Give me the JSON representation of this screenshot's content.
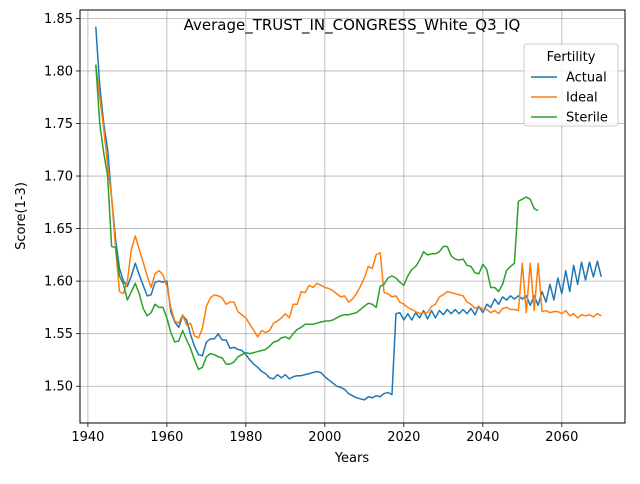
{
  "chart_data": {
    "type": "line",
    "title": "Average_TRUST_IN_CONGRESS_White_Q3_IQ",
    "xlabel": "Years",
    "ylabel": "Score(1-3)",
    "xlim": [
      1938,
      2076
    ],
    "ylim": [
      1.465,
      1.858
    ],
    "xticks": [
      1940,
      1960,
      1980,
      2000,
      2020,
      2040,
      2060
    ],
    "yticks": [
      1.5,
      1.55,
      1.6,
      1.65,
      1.7,
      1.75,
      1.8,
      1.85
    ],
    "ytick_labels": [
      "1.50",
      "1.55",
      "1.60",
      "1.65",
      "1.70",
      "1.75",
      "1.80",
      "1.85"
    ],
    "grid": true,
    "legend": {
      "title": "Fertility",
      "placement": "upper right"
    },
    "series": [
      {
        "name": "Actual",
        "color": "#1f77b4",
        "x": [
          1942,
          1943,
          1944,
          1945,
          1946,
          1947,
          1948,
          1949,
          1950,
          1951,
          1952,
          1953,
          1954,
          1955,
          1956,
          1957,
          1958,
          1959,
          1960,
          1961,
          1962,
          1963,
          1964,
          1965,
          1966,
          1967,
          1968,
          1969,
          1970,
          1971,
          1972,
          1973,
          1974,
          1975,
          1976,
          1977,
          1978,
          1979,
          1980,
          1981,
          1982,
          1983,
          1984,
          1985,
          1986,
          1987,
          1988,
          1989,
          1990,
          1991,
          1992,
          1993,
          1994,
          1995,
          1996,
          1997,
          1998,
          1999,
          2000,
          2001,
          2002,
          2003,
          2004,
          2005,
          2006,
          2007,
          2008,
          2009,
          2010,
          2011,
          2012,
          2013,
          2014,
          2015,
          2016,
          2017,
          2018,
          2019,
          2020,
          2021,
          2022,
          2023,
          2024,
          2025,
          2026,
          2027,
          2028,
          2029,
          2030,
          2031,
          2032,
          2033,
          2034,
          2035,
          2036,
          2037,
          2038,
          2039,
          2040,
          2041,
          2042,
          2043,
          2044,
          2045,
          2046,
          2047,
          2048,
          2049,
          2050,
          2051,
          2052,
          2053,
          2054,
          2055,
          2056,
          2057,
          2058,
          2059,
          2060,
          2061,
          2062,
          2063,
          2064,
          2065,
          2066,
          2067,
          2068,
          2069,
          2070
        ],
        "y": [
          1.842,
          1.786,
          1.75,
          1.725,
          1.68,
          1.64,
          1.612,
          1.6,
          1.595,
          1.605,
          1.617,
          1.606,
          1.596,
          1.586,
          1.587,
          1.599,
          1.6,
          1.599,
          1.6,
          1.571,
          1.561,
          1.556,
          1.567,
          1.563,
          1.549,
          1.538,
          1.53,
          1.529,
          1.542,
          1.545,
          1.545,
          1.55,
          1.544,
          1.544,
          1.536,
          1.537,
          1.535,
          1.534,
          1.53,
          1.525,
          1.521,
          1.518,
          1.514,
          1.512,
          1.508,
          1.507,
          1.511,
          1.508,
          1.511,
          1.507,
          1.509,
          1.51,
          1.51,
          1.511,
          1.512,
          1.513,
          1.514,
          1.513,
          1.509,
          1.506,
          1.503,
          1.5,
          1.499,
          1.497,
          1.493,
          1.491,
          1.489,
          1.488,
          1.487,
          1.49,
          1.489,
          1.491,
          1.49,
          1.493,
          1.494,
          1.492,
          1.569,
          1.57,
          1.563,
          1.569,
          1.563,
          1.57,
          1.565,
          1.572,
          1.564,
          1.572,
          1.565,
          1.572,
          1.568,
          1.573,
          1.569,
          1.573,
          1.569,
          1.573,
          1.569,
          1.574,
          1.568,
          1.576,
          1.57,
          1.578,
          1.575,
          1.583,
          1.578,
          1.585,
          1.582,
          1.586,
          1.583,
          1.586,
          1.583,
          1.586,
          1.577,
          1.586,
          1.577,
          1.59,
          1.58,
          1.597,
          1.582,
          1.603,
          1.588,
          1.61,
          1.59,
          1.615,
          1.597,
          1.618,
          1.601,
          1.618,
          1.604,
          1.619,
          1.604
        ]
      },
      {
        "name": "Ideal",
        "color": "#ff7f0e",
        "x": [
          1942,
          1943,
          1944,
          1945,
          1946,
          1947,
          1948,
          1949,
          1950,
          1951,
          1952,
          1953,
          1954,
          1955,
          1956,
          1957,
          1958,
          1959,
          1960,
          1961,
          1962,
          1963,
          1964,
          1965,
          1966,
          1967,
          1968,
          1969,
          1970,
          1971,
          1972,
          1973,
          1974,
          1975,
          1976,
          1977,
          1978,
          1979,
          1980,
          1981,
          1982,
          1983,
          1984,
          1985,
          1986,
          1987,
          1988,
          1989,
          1990,
          1991,
          1992,
          1993,
          1994,
          1995,
          1996,
          1997,
          1998,
          1999,
          2000,
          2001,
          2002,
          2003,
          2004,
          2005,
          2006,
          2007,
          2008,
          2009,
          2010,
          2011,
          2012,
          2013,
          2014,
          2015,
          2016,
          2017,
          2018,
          2019,
          2020,
          2021,
          2022,
          2023,
          2024,
          2025,
          2026,
          2027,
          2028,
          2029,
          2030,
          2031,
          2032,
          2033,
          2034,
          2035,
          2036,
          2037,
          2038,
          2039,
          2040,
          2041,
          2042,
          2043,
          2044,
          2045,
          2046,
          2047,
          2048,
          2049,
          2050,
          2051,
          2052,
          2053,
          2054,
          2055,
          2056,
          2057,
          2058,
          2059,
          2060,
          2061,
          2062,
          2063,
          2064,
          2065,
          2066,
          2067,
          2068,
          2069,
          2070
        ],
        "y": [
          1.806,
          1.775,
          1.745,
          1.71,
          1.68,
          1.632,
          1.59,
          1.588,
          1.6,
          1.63,
          1.643,
          1.63,
          1.618,
          1.605,
          1.594,
          1.607,
          1.61,
          1.606,
          1.595,
          1.575,
          1.562,
          1.56,
          1.568,
          1.558,
          1.56,
          1.548,
          1.546,
          1.555,
          1.576,
          1.584,
          1.587,
          1.586,
          1.584,
          1.578,
          1.58,
          1.58,
          1.571,
          1.568,
          1.565,
          1.559,
          1.553,
          1.547,
          1.553,
          1.551,
          1.553,
          1.56,
          1.562,
          1.565,
          1.569,
          1.565,
          1.578,
          1.578,
          1.59,
          1.589,
          1.596,
          1.594,
          1.598,
          1.596,
          1.594,
          1.593,
          1.591,
          1.588,
          1.585,
          1.586,
          1.58,
          1.583,
          1.588,
          1.595,
          1.603,
          1.614,
          1.612,
          1.625,
          1.627,
          1.589,
          1.588,
          1.585,
          1.586,
          1.58,
          1.578,
          1.575,
          1.573,
          1.571,
          1.569,
          1.57,
          1.57,
          1.576,
          1.578,
          1.585,
          1.587,
          1.59,
          1.589,
          1.588,
          1.587,
          1.586,
          1.58,
          1.578,
          1.574,
          1.576,
          1.573,
          1.573,
          1.57,
          1.572,
          1.569,
          1.574,
          1.575,
          1.573,
          1.573,
          1.572,
          1.617,
          1.57,
          1.617,
          1.572,
          1.617,
          1.571,
          1.572,
          1.57,
          1.571,
          1.571,
          1.569,
          1.572,
          1.567,
          1.569,
          1.565,
          1.568,
          1.567,
          1.568,
          1.566,
          1.569,
          1.567
        ]
      },
      {
        "name": "Sterile",
        "color": "#2ca02c",
        "x": [
          1942,
          1943,
          1944,
          1945,
          1946,
          1947,
          1948,
          1949,
          1950,
          1951,
          1952,
          1953,
          1954,
          1955,
          1956,
          1957,
          1958,
          1959,
          1960,
          1961,
          1962,
          1963,
          1964,
          1965,
          1966,
          1967,
          1968,
          1969,
          1970,
          1971,
          1972,
          1973,
          1974,
          1975,
          1976,
          1977,
          1978,
          1979,
          1980,
          1981,
          1982,
          1983,
          1984,
          1985,
          1986,
          1987,
          1988,
          1989,
          1990,
          1991,
          1992,
          1993,
          1994,
          1995,
          1996,
          1997,
          1998,
          1999,
          2000,
          2001,
          2002,
          2003,
          2004,
          2005,
          2006,
          2007,
          2008,
          2009,
          2010,
          2011,
          2012,
          2013,
          2014,
          2015,
          2016,
          2017,
          2018,
          2019,
          2020,
          2021,
          2022,
          2023,
          2024,
          2025,
          2026,
          2027,
          2028,
          2029,
          2030,
          2031,
          2032,
          2033,
          2034,
          2035,
          2036,
          2037,
          2038,
          2039,
          2040,
          2041,
          2042,
          2043,
          2044,
          2045,
          2046,
          2047,
          2048,
          2049,
          2050,
          2051,
          2052,
          2053,
          2054
        ],
        "y": [
          1.806,
          1.75,
          1.722,
          1.7,
          1.633,
          1.632,
          1.605,
          1.597,
          1.582,
          1.59,
          1.598,
          1.588,
          1.574,
          1.567,
          1.57,
          1.578,
          1.575,
          1.575,
          1.565,
          1.551,
          1.542,
          1.543,
          1.553,
          1.544,
          1.536,
          1.525,
          1.516,
          1.518,
          1.528,
          1.531,
          1.53,
          1.528,
          1.527,
          1.521,
          1.521,
          1.523,
          1.528,
          1.53,
          1.532,
          1.531,
          1.532,
          1.533,
          1.534,
          1.535,
          1.538,
          1.542,
          1.543,
          1.546,
          1.547,
          1.545,
          1.55,
          1.554,
          1.556,
          1.559,
          1.559,
          1.559,
          1.56,
          1.561,
          1.562,
          1.562,
          1.563,
          1.565,
          1.567,
          1.568,
          1.568,
          1.569,
          1.57,
          1.573,
          1.576,
          1.579,
          1.578,
          1.575,
          1.595,
          1.597,
          1.603,
          1.605,
          1.603,
          1.599,
          1.596,
          1.605,
          1.611,
          1.614,
          1.62,
          1.628,
          1.625,
          1.626,
          1.626,
          1.628,
          1.633,
          1.633,
          1.624,
          1.621,
          1.62,
          1.621,
          1.615,
          1.614,
          1.608,
          1.607,
          1.616,
          1.611,
          1.594,
          1.594,
          1.59,
          1.597,
          1.61,
          1.614,
          1.617,
          1.676,
          1.678,
          1.68,
          1.678,
          1.669,
          1.667
        ]
      }
    ]
  }
}
